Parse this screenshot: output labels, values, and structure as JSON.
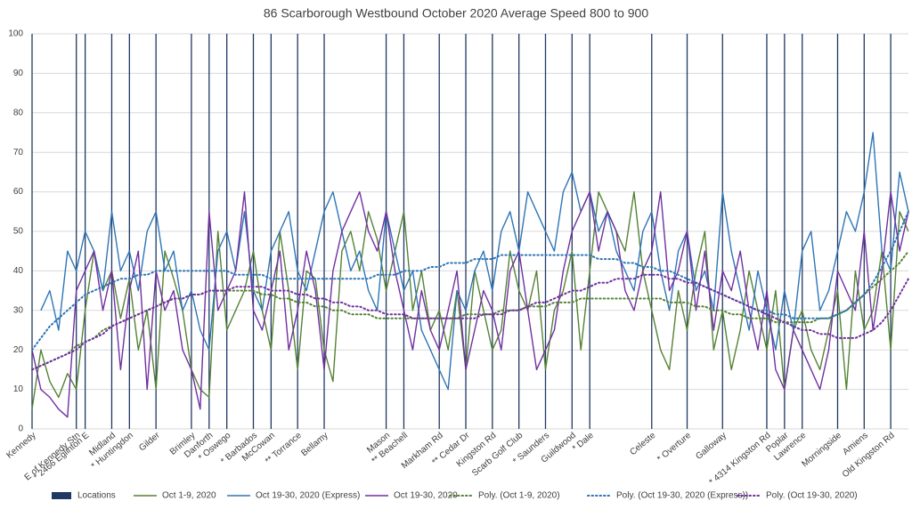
{
  "chart_data": {
    "type": "line",
    "title": "86 Scarborough Westbound October 2020 Average Speed 800 to 900",
    "categories": [
      "Kennedy",
      null,
      null,
      null,
      null,
      "E of Kennedy Stn",
      "* 2466 Eglinton E",
      null,
      null,
      "Midland",
      null,
      "* Huntingdon",
      null,
      null,
      "Gilder",
      null,
      null,
      null,
      "Brimley",
      null,
      "Danforth",
      null,
      "* Oswego",
      null,
      null,
      "* Barbados",
      null,
      "McCowan",
      null,
      null,
      "** Torrance",
      null,
      null,
      "Bellamy",
      null,
      null,
      null,
      null,
      null,
      null,
      "Mason",
      null,
      "** Beachell",
      null,
      null,
      null,
      "Markham Rd",
      null,
      null,
      "** Cedar Dr",
      null,
      null,
      "Kingston Rd",
      null,
      null,
      "Scarb Golf Club",
      null,
      null,
      "* Saunders",
      null,
      null,
      "Guildwood",
      null,
      "* Dale",
      null,
      null,
      null,
      null,
      null,
      null,
      "Celeste",
      null,
      null,
      null,
      "* Overture",
      null,
      null,
      null,
      "Galloway",
      null,
      null,
      null,
      null,
      "* 4314 Kingston Rd",
      null,
      "Poplar",
      null,
      "Lawrence",
      null,
      null,
      null,
      "Morningside",
      null,
      null,
      "Amiens",
      null,
      null,
      "Old Kingston Rd",
      null,
      null
    ],
    "series": [
      {
        "name": "Locations",
        "type": "bar",
        "color": "#1f3864",
        "values": [
          100,
          null,
          null,
          null,
          null,
          100,
          100,
          null,
          null,
          100,
          null,
          100,
          null,
          null,
          100,
          null,
          null,
          null,
          100,
          null,
          100,
          null,
          100,
          null,
          null,
          100,
          null,
          100,
          null,
          null,
          100,
          null,
          null,
          100,
          null,
          null,
          null,
          null,
          null,
          null,
          100,
          null,
          100,
          null,
          null,
          null,
          100,
          null,
          null,
          100,
          null,
          null,
          100,
          null,
          null,
          100,
          null,
          null,
          100,
          null,
          null,
          100,
          null,
          100,
          null,
          null,
          null,
          null,
          null,
          null,
          100,
          null,
          null,
          null,
          100,
          null,
          null,
          null,
          100,
          null,
          null,
          null,
          null,
          100,
          null,
          100,
          null,
          100,
          null,
          null,
          null,
          100,
          null,
          null,
          100,
          null,
          null,
          100,
          null,
          null
        ]
      },
      {
        "name": "Oct 1-9, 2020",
        "color": "#548235",
        "values": [
          5,
          20,
          12,
          8,
          14,
          10,
          30,
          45,
          35,
          40,
          28,
          38,
          20,
          30,
          10,
          45,
          38,
          30,
          15,
          10,
          8,
          50,
          25,
          30,
          35,
          45,
          30,
          20,
          50,
          35,
          15,
          40,
          38,
          20,
          12,
          45,
          50,
          40,
          55,
          48,
          35,
          45,
          55,
          30,
          40,
          25,
          30,
          20,
          35,
          15,
          40,
          30,
          20,
          25,
          45,
          35,
          30,
          40,
          15,
          30,
          35,
          45,
          20,
          40,
          60,
          55,
          50,
          45,
          60,
          40,
          30,
          20,
          15,
          35,
          25,
          40,
          50,
          20,
          30,
          15,
          25,
          40,
          30,
          20,
          35,
          10,
          25,
          30,
          20,
          15,
          25,
          35,
          10,
          40,
          25,
          30,
          45,
          20,
          55,
          50
        ]
      },
      {
        "name": "Oct 19-30, 2020 (Express)",
        "color": "#2e75b6",
        "values": [
          null,
          30,
          35,
          25,
          45,
          40,
          50,
          45,
          35,
          55,
          40,
          45,
          35,
          50,
          55,
          40,
          45,
          30,
          35,
          25,
          20,
          45,
          50,
          40,
          55,
          35,
          30,
          45,
          50,
          55,
          40,
          35,
          45,
          55,
          60,
          50,
          40,
          45,
          35,
          30,
          55,
          45,
          35,
          40,
          25,
          20,
          15,
          10,
          35,
          30,
          40,
          45,
          35,
          50,
          55,
          45,
          60,
          55,
          50,
          45,
          60,
          65,
          55,
          60,
          50,
          55,
          45,
          40,
          35,
          50,
          55,
          40,
          30,
          45,
          50,
          35,
          40,
          30,
          60,
          45,
          35,
          25,
          40,
          30,
          20,
          35,
          25,
          45,
          50,
          30,
          35,
          45,
          55,
          50,
          60,
          75,
          45,
          40,
          65,
          55
        ]
      },
      {
        "name": "Oct 19-30, 2020",
        "color": "#7030a0",
        "values": [
          20,
          10,
          8,
          5,
          3,
          35,
          40,
          45,
          30,
          40,
          15,
          35,
          45,
          10,
          40,
          30,
          35,
          20,
          15,
          5,
          55,
          30,
          35,
          40,
          60,
          30,
          25,
          35,
          45,
          20,
          30,
          45,
          35,
          15,
          40,
          50,
          55,
          60,
          50,
          45,
          55,
          40,
          30,
          20,
          35,
          25,
          20,
          30,
          40,
          15,
          25,
          35,
          30,
          20,
          40,
          45,
          30,
          15,
          20,
          25,
          40,
          50,
          55,
          60,
          45,
          55,
          50,
          35,
          30,
          40,
          45,
          60,
          35,
          40,
          50,
          30,
          45,
          25,
          40,
          35,
          45,
          30,
          20,
          35,
          15,
          10,
          25,
          20,
          15,
          10,
          20,
          40,
          35,
          30,
          50,
          25,
          40,
          60,
          45,
          55
        ]
      },
      {
        "name": "Poly. (Oct 1-9, 2020)",
        "color": "#548235",
        "dash": "dotted",
        "values": [
          15,
          16,
          17,
          18,
          19,
          21,
          22,
          23,
          25,
          26,
          27,
          28,
          29,
          30,
          31,
          32,
          33,
          33,
          34,
          34,
          35,
          35,
          35,
          35,
          35,
          35,
          34,
          34,
          33,
          33,
          32,
          32,
          31,
          31,
          30,
          30,
          29,
          29,
          29,
          28,
          28,
          28,
          28,
          28,
          28,
          28,
          28,
          28,
          28,
          29,
          29,
          29,
          29,
          30,
          30,
          30,
          31,
          31,
          31,
          32,
          32,
          32,
          33,
          33,
          33,
          33,
          33,
          33,
          33,
          33,
          33,
          33,
          32,
          32,
          32,
          31,
          31,
          30,
          30,
          29,
          29,
          28,
          28,
          28,
          27,
          27,
          27,
          27,
          27,
          28,
          28,
          29,
          30,
          32,
          34,
          36,
          38,
          40,
          42,
          45
        ]
      },
      {
        "name": "Poly. (Oct 19-30, 2020 (Express))",
        "color": "#2e75b6",
        "dash": "dotted",
        "values": [
          20,
          23,
          26,
          28,
          30,
          32,
          34,
          35,
          36,
          37,
          38,
          38,
          39,
          39,
          40,
          40,
          40,
          40,
          40,
          40,
          40,
          40,
          40,
          39,
          39,
          39,
          39,
          38,
          38,
          38,
          38,
          38,
          38,
          38,
          38,
          38,
          38,
          38,
          38,
          39,
          39,
          39,
          40,
          40,
          40,
          41,
          41,
          42,
          42,
          42,
          43,
          43,
          43,
          44,
          44,
          44,
          44,
          44,
          44,
          44,
          44,
          44,
          44,
          44,
          43,
          43,
          43,
          42,
          42,
          41,
          41,
          40,
          40,
          39,
          38,
          37,
          36,
          35,
          34,
          33,
          32,
          31,
          30,
          30,
          29,
          29,
          28,
          28,
          28,
          28,
          28,
          29,
          30,
          32,
          34,
          37,
          41,
          45,
          50,
          55
        ]
      },
      {
        "name": "Poly. (Oct 19-30, 2020)",
        "color": "#7030a0",
        "dash": "dotted",
        "values": [
          15,
          16,
          17,
          18,
          19,
          20,
          22,
          23,
          24,
          26,
          27,
          28,
          29,
          30,
          31,
          32,
          33,
          33,
          34,
          34,
          35,
          35,
          35,
          36,
          36,
          36,
          36,
          35,
          35,
          35,
          34,
          34,
          33,
          33,
          32,
          32,
          31,
          31,
          30,
          30,
          29,
          29,
          29,
          28,
          28,
          28,
          28,
          28,
          28,
          28,
          28,
          29,
          29,
          29,
          30,
          30,
          31,
          32,
          32,
          33,
          34,
          35,
          35,
          36,
          37,
          37,
          38,
          38,
          38,
          39,
          39,
          39,
          38,
          38,
          37,
          37,
          36,
          35,
          34,
          33,
          32,
          31,
          30,
          29,
          28,
          27,
          26,
          25,
          25,
          24,
          24,
          23,
          23,
          23,
          24,
          25,
          27,
          30,
          34,
          38
        ]
      }
    ],
    "ylim": [
      0,
      100
    ],
    "yticks": [
      0,
      10,
      20,
      30,
      40,
      50,
      60,
      70,
      80,
      90,
      100
    ],
    "grid": true,
    "legend": "bottom"
  }
}
